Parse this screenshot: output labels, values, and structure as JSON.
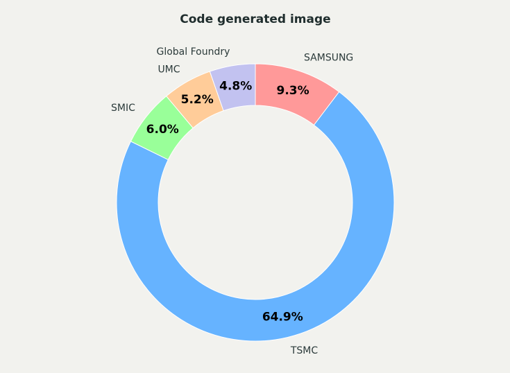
{
  "chart_data": {
    "type": "donut",
    "title": "Code generated image",
    "categories": [
      "SAMSUNG",
      "TSMC",
      "SMIC",
      "UMC",
      "Global Foundry"
    ],
    "values": [
      9.3,
      64.9,
      6.0,
      5.2,
      4.8
    ],
    "value_labels": [
      "9.3%",
      "64.9%",
      "6.0%",
      "5.2%",
      "4.8%"
    ],
    "colors": [
      "#ff9999",
      "#66b3ff",
      "#99ff99",
      "#ffcc99",
      "#c2c2f0"
    ]
  }
}
